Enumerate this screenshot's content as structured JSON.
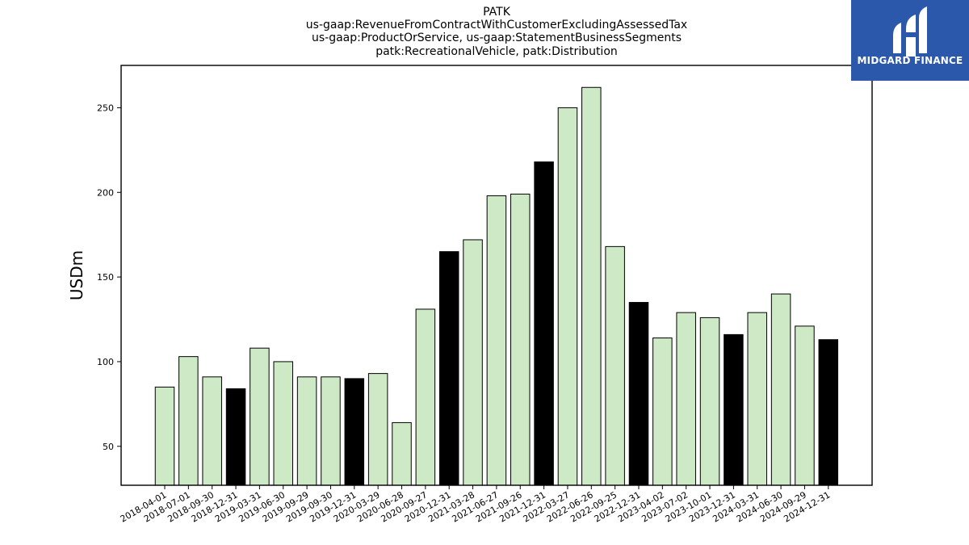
{
  "title_lines": [
    "PATK",
    "us-gaap:RevenueFromContractWithCustomerExcludingAssessedTax",
    "us-gaap:ProductOrService, us-gaap:StatementBusinessSegments",
    "patk:RecreationalVehicle, patk:Distribution"
  ],
  "logo": {
    "text": "MIDGARD FINANCE",
    "background": "#2b58aa"
  },
  "colors": {
    "quarter_bar": "#cde9c5",
    "year_end_bar": "#000000",
    "bar_edge": "#000000"
  },
  "chart_data": {
    "type": "bar",
    "title": "PATK",
    "ylabel": "USDm",
    "xlabel": "",
    "ylim": [
      27,
      275
    ],
    "yticks": [
      50,
      100,
      150,
      200,
      250
    ],
    "grid": false,
    "categories": [
      "2018-04-01",
      "2018-07-01",
      "2018-09-30",
      "2018-12-31",
      "2019-03-31",
      "2019-06-30",
      "2019-09-29",
      "2019-09-30",
      "2019-12-31",
      "2020-03-29",
      "2020-06-28",
      "2020-09-27",
      "2020-12-31",
      "2021-03-28",
      "2021-06-27",
      "2021-09-26",
      "2021-12-31",
      "2022-03-27",
      "2022-06-26",
      "2022-09-25",
      "2022-12-31",
      "2023-04-02",
      "2023-07-02",
      "2023-10-01",
      "2023-12-31",
      "2024-03-31",
      "2024-06-30",
      "2024-09-29",
      "2024-12-31"
    ],
    "values": [
      85,
      103,
      91,
      84,
      108,
      100,
      91,
      91,
      90,
      93,
      64,
      131,
      165,
      172,
      198,
      199,
      218,
      250,
      262,
      168,
      135,
      114,
      129,
      126,
      116,
      129,
      140,
      121,
      113
    ],
    "year_end": [
      false,
      false,
      false,
      true,
      false,
      false,
      false,
      false,
      true,
      false,
      false,
      false,
      true,
      false,
      false,
      false,
      true,
      false,
      false,
      false,
      true,
      false,
      false,
      false,
      true,
      false,
      false,
      false,
      true
    ]
  }
}
